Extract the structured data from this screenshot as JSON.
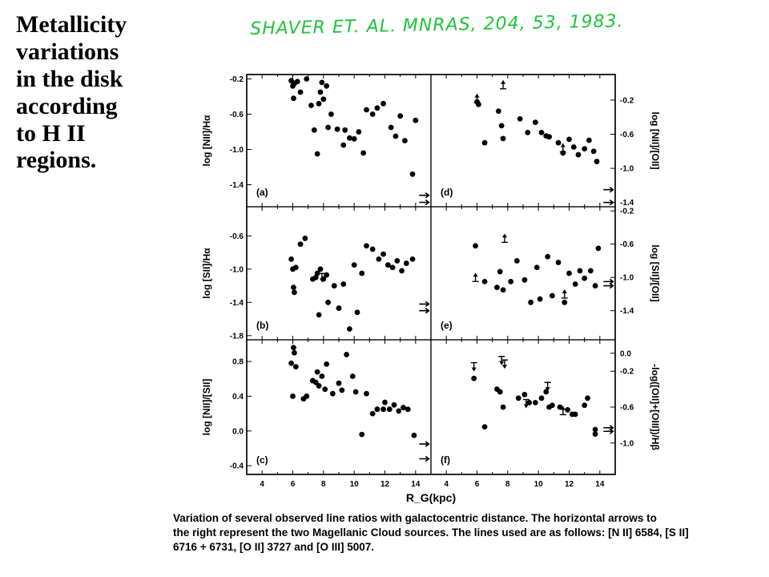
{
  "slide": {
    "title_lines": [
      "Metallicity",
      "variations",
      "in the disk",
      "according",
      "to H II",
      "regions."
    ]
  },
  "citation": "SHAVER ET. AL.  MNRAS, 204, 53, 1983.",
  "caption": {
    "lines": [
      "Variation of several observed line ratios with galactocentric distance. The horizontal arrows to",
      "the right represent the two Magellanic Cloud sources. The lines used are as follows: [N II] 6584, [S II]",
      "6716 + 6731, [O II] 3727 and [O III] 5007."
    ]
  },
  "chart_data": {
    "x_label": "R_G(kpc)",
    "x_ticks": [
      "4",
      "6",
      "8",
      "10",
      "12",
      "14"
    ],
    "panels": [
      {
        "id": "a",
        "type": "scatter",
        "label": "(a)",
        "ylabel": "log [NII]/Hα",
        "y_axis_side": "left",
        "xlim": [
          3,
          15
        ],
        "ylim": [
          -1.65,
          -0.15
        ],
        "y_ticks": [
          -0.2,
          -0.6,
          -1.0,
          -1.4
        ],
        "y_tick_labels": [
          "-0.2",
          "-0.6",
          "-1.0",
          "-1.4"
        ],
        "points": [
          [
            5.9,
            -0.22
          ],
          [
            6.0,
            -0.28
          ],
          [
            6.05,
            -0.42
          ],
          [
            6.1,
            -0.25
          ],
          [
            6.3,
            -0.23
          ],
          [
            6.5,
            -0.35
          ],
          [
            6.9,
            -0.2
          ],
          [
            7.2,
            -0.5
          ],
          [
            7.4,
            -0.78
          ],
          [
            7.6,
            -1.05
          ],
          [
            7.7,
            -0.48
          ],
          [
            7.8,
            -0.35
          ],
          [
            7.9,
            -0.24
          ],
          [
            8.0,
            -0.43
          ],
          [
            8.2,
            -0.28
          ],
          [
            8.3,
            -0.75
          ],
          [
            8.5,
            -0.6
          ],
          [
            8.9,
            -0.77
          ],
          [
            9.3,
            -0.95
          ],
          [
            9.4,
            -0.78
          ],
          [
            9.7,
            -0.87
          ],
          [
            10.0,
            -0.88
          ],
          [
            10.3,
            -0.8
          ],
          [
            10.6,
            -1.04
          ],
          [
            10.8,
            -0.55
          ],
          [
            11.2,
            -0.6
          ],
          [
            11.5,
            -0.53
          ],
          [
            11.9,
            -0.48
          ],
          [
            12.4,
            -0.75
          ],
          [
            12.7,
            -0.85
          ],
          [
            13.0,
            -0.62
          ],
          [
            13.3,
            -0.9
          ],
          [
            13.8,
            -1.28
          ],
          [
            14.0,
            -0.67
          ]
        ],
        "markers": [
          {
            "x": 14.6,
            "y": -1.6,
            "type": "arrow-right"
          },
          {
            "x": 14.6,
            "y": -1.52,
            "type": "arrow-right"
          }
        ]
      },
      {
        "id": "d",
        "type": "scatter",
        "label": "(d)",
        "ylabel": "log [NII]/[OII]",
        "y_axis_side": "right",
        "xlim": [
          3,
          15
        ],
        "ylim": [
          -1.45,
          0.1
        ],
        "y_ticks": [
          -0.2,
          -0.6,
          -1.0,
          -1.4
        ],
        "y_tick_labels": [
          "-0.2",
          "-0.6",
          "-1.0",
          "-1.4"
        ],
        "points": [
          [
            6.0,
            -0.22
          ],
          [
            6.1,
            -0.25
          ],
          [
            6.5,
            -0.7
          ],
          [
            7.4,
            -0.33
          ],
          [
            7.6,
            -0.5
          ],
          [
            7.7,
            -0.65
          ],
          [
            8.8,
            -0.42
          ],
          [
            9.3,
            -0.58
          ],
          [
            9.8,
            -0.46
          ],
          [
            10.2,
            -0.58
          ],
          [
            10.5,
            -0.62
          ],
          [
            10.7,
            -0.63
          ],
          [
            11.3,
            -0.7
          ],
          [
            11.6,
            -0.82
          ],
          [
            12.0,
            -0.66
          ],
          [
            12.3,
            -0.75
          ],
          [
            12.6,
            -0.84
          ],
          [
            13.0,
            -0.77
          ],
          [
            13.3,
            -0.67
          ],
          [
            13.6,
            -0.8
          ],
          [
            13.8,
            -0.92
          ]
        ],
        "markers": [
          {
            "x": 6.0,
            "y": -0.18,
            "type": "limit-up"
          },
          {
            "x": 7.7,
            "y": -0.02,
            "type": "limit-up"
          },
          {
            "x": 11.6,
            "y": -0.76,
            "type": "limit-up"
          },
          {
            "x": 14.6,
            "y": -1.25,
            "type": "arrow-right"
          },
          {
            "x": 14.6,
            "y": -1.4,
            "type": "arrow-right"
          }
        ]
      },
      {
        "id": "b",
        "type": "scatter",
        "label": "(b)",
        "ylabel": "log [SII]/Hα",
        "y_axis_side": "left",
        "xlim": [
          3,
          15
        ],
        "ylim": [
          -1.85,
          -0.25
        ],
        "y_ticks": [
          -0.6,
          -1.0,
          -1.4,
          -1.8
        ],
        "y_tick_labels": [
          "-0.6",
          "-1.0",
          "-1.4",
          "-1.8"
        ],
        "points": [
          [
            5.9,
            -0.88
          ],
          [
            6.0,
            -1.0
          ],
          [
            6.05,
            -1.22
          ],
          [
            6.1,
            -1.28
          ],
          [
            6.2,
            -0.98
          ],
          [
            6.5,
            -0.7
          ],
          [
            6.8,
            -0.63
          ],
          [
            7.3,
            -1.12
          ],
          [
            7.5,
            -1.1
          ],
          [
            7.6,
            -1.05
          ],
          [
            7.7,
            -1.55
          ],
          [
            7.8,
            -1.0
          ],
          [
            8.0,
            -1.12
          ],
          [
            8.2,
            -1.07
          ],
          [
            8.3,
            -1.4
          ],
          [
            8.7,
            -1.2
          ],
          [
            9.0,
            -1.47
          ],
          [
            9.3,
            -1.18
          ],
          [
            9.7,
            -1.72
          ],
          [
            10.0,
            -0.95
          ],
          [
            10.2,
            -1.52
          ],
          [
            10.5,
            -1.05
          ],
          [
            10.8,
            -0.72
          ],
          [
            11.2,
            -0.76
          ],
          [
            11.6,
            -0.88
          ],
          [
            11.9,
            -0.82
          ],
          [
            12.2,
            -0.95
          ],
          [
            12.5,
            -0.98
          ],
          [
            12.8,
            -0.9
          ],
          [
            13.1,
            -1.02
          ],
          [
            13.4,
            -0.93
          ],
          [
            13.8,
            -0.88
          ]
        ],
        "markers": [
          {
            "x": 7.9,
            "y": -1.1,
            "type": "limit-down"
          },
          {
            "x": 14.6,
            "y": -1.5,
            "type": "arrow-right"
          },
          {
            "x": 14.6,
            "y": -1.42,
            "type": "arrow-right"
          }
        ]
      },
      {
        "id": "e",
        "type": "scatter",
        "label": "(e)",
        "ylabel": "log [SII]/[OII]",
        "y_axis_side": "right",
        "xlim": [
          3,
          15
        ],
        "ylim": [
          -1.75,
          -0.15
        ],
        "y_ticks": [
          -0.2,
          -0.6,
          -1.0,
          -1.4
        ],
        "y_tick_labels": [
          "-0.2",
          "-0.6",
          "-1.0",
          "-1.4"
        ],
        "points": [
          [
            5.9,
            -0.62
          ],
          [
            6.5,
            -1.05
          ],
          [
            7.3,
            -1.12
          ],
          [
            7.5,
            -0.93
          ],
          [
            7.7,
            -1.15
          ],
          [
            8.2,
            -1.05
          ],
          [
            8.6,
            -0.8
          ],
          [
            9.1,
            -1.03
          ],
          [
            9.5,
            -1.3
          ],
          [
            9.9,
            -0.88
          ],
          [
            10.1,
            -1.26
          ],
          [
            10.6,
            -0.75
          ],
          [
            10.9,
            -1.22
          ],
          [
            11.3,
            -0.82
          ],
          [
            11.7,
            -1.3
          ],
          [
            12.0,
            -0.95
          ],
          [
            12.4,
            -1.08
          ],
          [
            12.7,
            -0.92
          ],
          [
            13.0,
            -1.01
          ],
          [
            13.4,
            -0.92
          ],
          [
            13.7,
            -1.1
          ],
          [
            13.9,
            -0.65
          ]
        ],
        "markers": [
          {
            "x": 5.9,
            "y": -1.0,
            "type": "limit-up"
          },
          {
            "x": 7.8,
            "y": -0.53,
            "type": "limit-up"
          },
          {
            "x": 11.7,
            "y": -1.2,
            "type": "limit-up"
          },
          {
            "x": 14.6,
            "y": -1.1,
            "type": "arrow-right"
          },
          {
            "x": 14.6,
            "y": -1.05,
            "type": "arrow-right"
          }
        ]
      },
      {
        "id": "c",
        "type": "scatter",
        "label": "(c)",
        "ylabel": "log [NII]/[SII]",
        "y_axis_side": "left",
        "xlim": [
          3,
          15
        ],
        "ylim": [
          -0.5,
          1.05
        ],
        "y_ticks": [
          0.8,
          0.4,
          0.0,
          -0.4
        ],
        "y_tick_labels": [
          "0.8",
          "0.4",
          "0.0",
          "-0.4"
        ],
        "points": [
          [
            5.9,
            0.78
          ],
          [
            6.0,
            0.4
          ],
          [
            6.05,
            0.96
          ],
          [
            6.1,
            0.9
          ],
          [
            6.2,
            0.74
          ],
          [
            6.7,
            0.37
          ],
          [
            6.9,
            0.4
          ],
          [
            7.3,
            0.58
          ],
          [
            7.5,
            0.56
          ],
          [
            7.6,
            0.68
          ],
          [
            7.7,
            0.52
          ],
          [
            7.9,
            0.63
          ],
          [
            8.1,
            0.48
          ],
          [
            8.2,
            0.77
          ],
          [
            8.6,
            0.43
          ],
          [
            9.0,
            0.55
          ],
          [
            9.2,
            0.47
          ],
          [
            9.5,
            0.88
          ],
          [
            9.9,
            0.63
          ],
          [
            10.1,
            0.45
          ],
          [
            10.5,
            -0.04
          ],
          [
            10.8,
            0.43
          ],
          [
            11.2,
            0.2
          ],
          [
            11.5,
            0.25
          ],
          [
            11.9,
            0.25
          ],
          [
            12.0,
            0.33
          ],
          [
            12.3,
            0.25
          ],
          [
            12.6,
            0.3
          ],
          [
            12.9,
            0.23
          ],
          [
            13.2,
            0.27
          ],
          [
            13.5,
            0.25
          ],
          [
            13.9,
            -0.05
          ]
        ],
        "markers": [
          {
            "x": 14.6,
            "y": -0.15,
            "type": "arrow-right"
          },
          {
            "x": 14.6,
            "y": -0.32,
            "type": "arrow-right"
          }
        ]
      },
      {
        "id": "f",
        "type": "scatter",
        "label": "(f)",
        "ylabel": "-log([OII]+[OIII])/Hβ",
        "y_axis_side": "right",
        "xlim": [
          3,
          15
        ],
        "ylim": [
          -1.35,
          0.15
        ],
        "y_ticks": [
          0.0,
          -0.2,
          -0.6,
          -1.0
        ],
        "y_tick_labels": [
          "0.0",
          "-0.2",
          "-0.6",
          "-1.0"
        ],
        "points": [
          [
            5.8,
            -0.28
          ],
          [
            6.5,
            -0.82
          ],
          [
            7.3,
            -0.4
          ],
          [
            7.5,
            -0.43
          ],
          [
            7.7,
            -0.6
          ],
          [
            8.7,
            -0.5
          ],
          [
            9.1,
            -0.46
          ],
          [
            9.4,
            -0.55
          ],
          [
            9.8,
            -0.55
          ],
          [
            10.2,
            -0.5
          ],
          [
            10.5,
            -0.43
          ],
          [
            10.7,
            -0.6
          ],
          [
            10.9,
            -0.58
          ],
          [
            11.4,
            -0.6
          ],
          [
            11.9,
            -0.63
          ],
          [
            12.2,
            -0.68
          ],
          [
            12.4,
            -0.68
          ],
          [
            13.0,
            -0.58
          ],
          [
            13.2,
            -0.5
          ],
          [
            13.7,
            -0.85
          ],
          [
            13.7,
            -0.9
          ]
        ],
        "markers": [
          {
            "x": 5.8,
            "y": -0.15,
            "type": "limit-down"
          },
          {
            "x": 7.6,
            "y": -0.08,
            "type": "limit-down"
          },
          {
            "x": 7.8,
            "y": -0.12,
            "type": "limit-down"
          },
          {
            "x": 9.2,
            "y": -0.56,
            "type": "limit-down"
          },
          {
            "x": 10.6,
            "y": -0.37,
            "type": "limit-down"
          },
          {
            "x": 11.6,
            "y": -0.64,
            "type": "limit-up"
          },
          {
            "x": 14.6,
            "y": -0.87,
            "type": "arrow-right"
          },
          {
            "x": 14.6,
            "y": -0.83,
            "type": "arrow-right"
          }
        ]
      }
    ]
  }
}
